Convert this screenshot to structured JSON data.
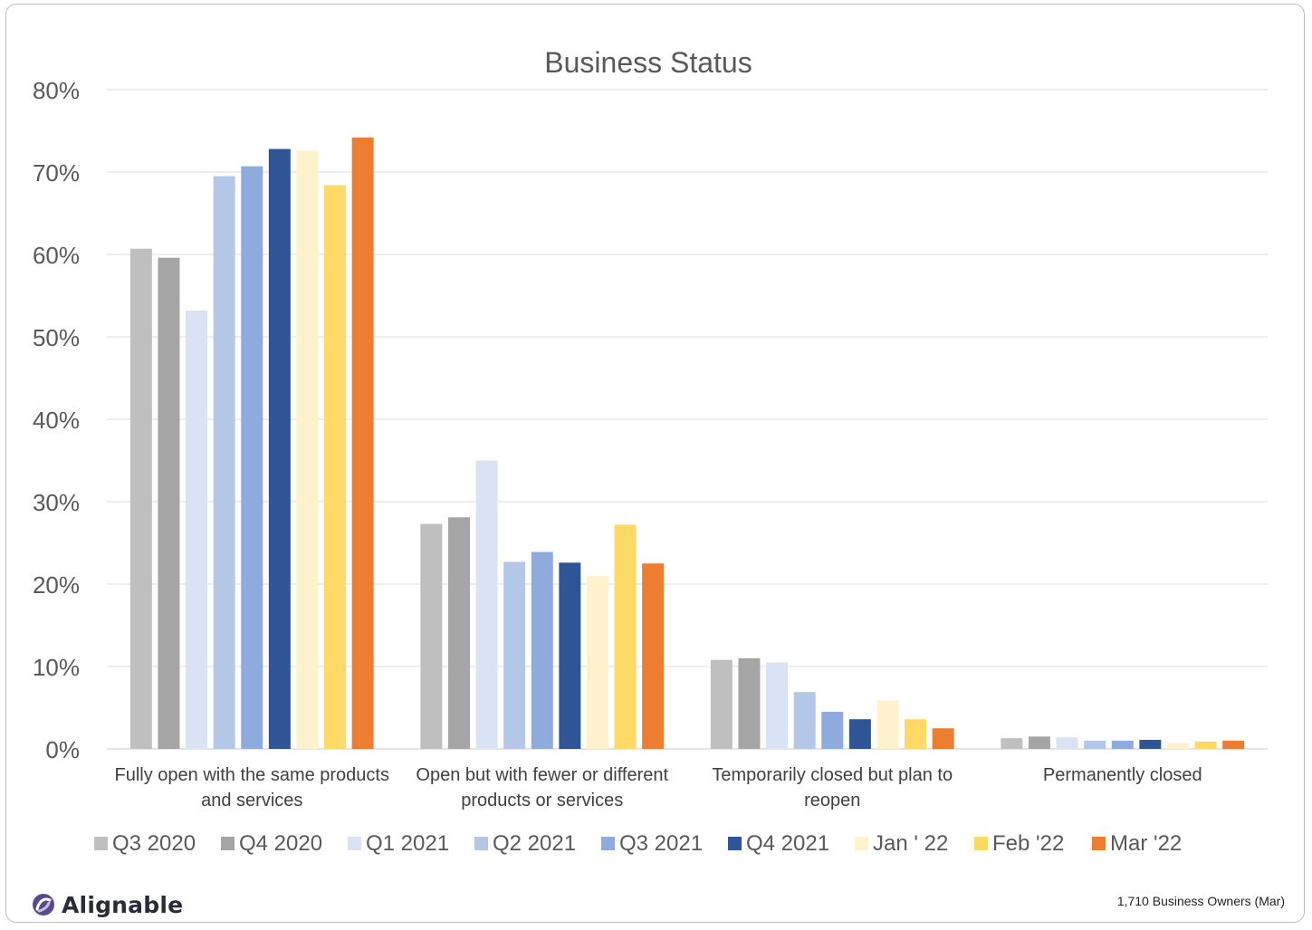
{
  "chart_data": {
    "type": "bar",
    "title": "Business Status",
    "xlabel": "",
    "ylabel": "",
    "ylim": [
      0,
      80
    ],
    "yticks": [
      "0%",
      "10%",
      "20%",
      "30%",
      "40%",
      "50%",
      "60%",
      "70%",
      "80%"
    ],
    "ytick_values": [
      0,
      10,
      20,
      30,
      40,
      50,
      60,
      70,
      80
    ],
    "grid": true,
    "legend_position": "bottom",
    "categories": [
      [
        "Fully open with the same products",
        "and services"
      ],
      [
        "Open but with fewer or different",
        "products or services"
      ],
      [
        "Temporarily closed but plan to",
        "reopen"
      ],
      [
        "Permanently closed"
      ]
    ],
    "series": [
      {
        "name": "Q3 2020",
        "color": "#bfbfbf",
        "values": [
          60.7,
          27.3,
          10.8,
          1.3
        ]
      },
      {
        "name": "Q4 2020",
        "color": "#a5a5a5",
        "values": [
          59.6,
          28.1,
          11.0,
          1.5
        ]
      },
      {
        "name": "Q1 2021",
        "color": "#dae3f3",
        "values": [
          53.2,
          35.0,
          10.5,
          1.4
        ]
      },
      {
        "name": "Q2 2021",
        "color": "#b4c7e7",
        "values": [
          69.5,
          22.7,
          6.9,
          1.0
        ]
      },
      {
        "name": "Q3 2021",
        "color": "#8faadc",
        "values": [
          70.7,
          23.9,
          4.5,
          1.0
        ]
      },
      {
        "name": "Q4 2021",
        "color": "#2f5597",
        "values": [
          72.8,
          22.6,
          3.6,
          1.1
        ]
      },
      {
        "name": "Jan ' 22",
        "color": "#fff2cc",
        "values": [
          72.6,
          21.0,
          5.9,
          0.7
        ]
      },
      {
        "name": "Feb '22",
        "color": "#ffd966",
        "values": [
          68.4,
          27.2,
          3.6,
          0.9
        ]
      },
      {
        "name": "Mar '22",
        "color": "#ed7d31",
        "values": [
          74.2,
          22.5,
          2.5,
          1.0
        ]
      }
    ]
  },
  "brand": {
    "name": "Alignable",
    "icon": "alignable-logo-icon"
  },
  "footnote": "1,710 Business Owners (Mar)"
}
